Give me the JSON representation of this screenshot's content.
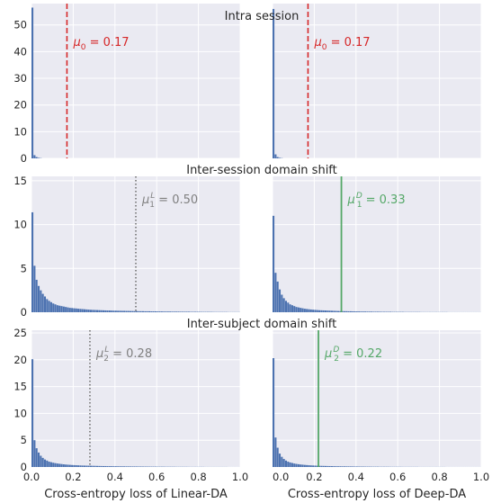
{
  "colors": {
    "panel_bg": "#eaeaf2",
    "grid": "#ffffff",
    "bar": "#4c72b0",
    "red": "#d62728",
    "gray": "#808080",
    "green": "#55a868"
  },
  "chart_data": {
    "type": "bar",
    "xlabels": [
      "Cross-entropy loss of Linear-DA",
      "Cross-entropy loss of Deep-DA"
    ],
    "x_ticks": [
      0.0,
      0.2,
      0.4,
      0.6,
      0.8,
      1.0
    ],
    "x_tick_labels": [
      "0.0",
      "0.2",
      "0.4",
      "0.6",
      "0.8",
      "1.0"
    ],
    "xlim": [
      0,
      1
    ],
    "bin_width": 0.01,
    "grid": true,
    "rows": [
      {
        "title": "Intra session",
        "ylim": [
          0,
          58
        ],
        "y_ticks": [
          0,
          10,
          20,
          30,
          40,
          50
        ],
        "y_tick_labels": [
          "0",
          "10",
          "20",
          "30",
          "40",
          "50"
        ],
        "panels": [
          {
            "name": "intra-linear",
            "values": [
              56.5,
              1.2,
              0.5,
              0.2,
              0.1
            ],
            "line": {
              "x": 0.17,
              "style": "dashed",
              "color": "#d62728"
            },
            "annotation": {
              "prefix": "μ",
              "sub": "0",
              "sup": "",
              "text": " = 0.17",
              "color": "#d62728"
            }
          },
          {
            "name": "intra-deep",
            "values": [
              56.0,
              1.5,
              0.5,
              0.2,
              0.1
            ],
            "line": {
              "x": 0.17,
              "style": "dashed",
              "color": "#d62728"
            },
            "annotation": {
              "prefix": "μ",
              "sub": "0",
              "sup": "",
              "text": " = 0.17",
              "color": "#d62728"
            }
          }
        ]
      },
      {
        "title": "Inter-session domain shift",
        "ylim": [
          0,
          15.5
        ],
        "y_ticks": [
          0,
          5,
          10,
          15
        ],
        "y_tick_labels": [
          "0",
          "5",
          "10",
          "15"
        ],
        "panels": [
          {
            "name": "session-linear",
            "values": [
              11.4,
              5.3,
              3.7,
              3.0,
              2.5,
              2.1,
              1.8,
              1.5,
              1.3,
              1.15,
              1.0,
              0.9,
              0.8,
              0.75,
              0.7,
              0.65,
              0.6,
              0.55,
              0.5,
              0.48,
              0.45,
              0.43,
              0.4,
              0.38,
              0.36,
              0.34,
              0.32,
              0.3,
              0.28,
              0.27,
              0.26,
              0.25,
              0.24,
              0.23,
              0.22,
              0.21,
              0.2,
              0.2,
              0.19,
              0.18,
              0.18,
              0.17,
              0.17,
              0.16,
              0.16,
              0.15,
              0.15,
              0.14,
              0.14,
              0.13,
              0.13,
              0.12,
              0.12,
              0.12,
              0.11,
              0.11,
              0.11,
              0.1,
              0.1,
              0.1,
              0.09,
              0.09,
              0.09,
              0.08,
              0.08,
              0.08,
              0.08,
              0.07,
              0.07,
              0.07,
              0.07,
              0.06,
              0.06,
              0.06,
              0.06,
              0.06,
              0.05,
              0.05,
              0.05,
              0.05,
              0.05,
              0.04,
              0.04,
              0.04,
              0.04,
              0.04,
              0.04,
              0.03,
              0.03,
              0.03,
              0.03,
              0.03,
              0.03,
              0.03,
              0.02,
              0.02,
              0.02,
              0.02,
              0.02,
              0.02
            ],
            "line": {
              "x": 0.5,
              "style": "dotted",
              "color": "#808080"
            },
            "annotation": {
              "prefix": "μ",
              "sub": "1",
              "sup": "L",
              "text": " = 0.50",
              "color": "#808080"
            }
          },
          {
            "name": "session-deep",
            "values": [
              11.0,
              4.5,
              3.5,
              2.6,
              2.0,
              1.6,
              1.3,
              1.1,
              0.9,
              0.8,
              0.7,
              0.6,
              0.55,
              0.5,
              0.45,
              0.4,
              0.37,
              0.34,
              0.31,
              0.29,
              0.27,
              0.25,
              0.23,
              0.22,
              0.21,
              0.2,
              0.19,
              0.18,
              0.17,
              0.16,
              0.15,
              0.14,
              0.13,
              0.13,
              0.12,
              0.12,
              0.11,
              0.11,
              0.1,
              0.1,
              0.09,
              0.09,
              0.08,
              0.08,
              0.08,
              0.07,
              0.07,
              0.07,
              0.06,
              0.06,
              0.06,
              0.06,
              0.05,
              0.05,
              0.05,
              0.05,
              0.05,
              0.04,
              0.04,
              0.04,
              0.04,
              0.04,
              0.04,
              0.03,
              0.03,
              0.03,
              0.03,
              0.03,
              0.03,
              0.03,
              0.03,
              0.02,
              0.02,
              0.02,
              0.02,
              0.02,
              0.02,
              0.02,
              0.02,
              0.02,
              0.02,
              0.02,
              0.02,
              0.02,
              0.01,
              0.01,
              0.01,
              0.01,
              0.01,
              0.01,
              0.01,
              0.01,
              0.01,
              0.01,
              0.01,
              0.01,
              0.01,
              0.01,
              0.01,
              0.01
            ],
            "line": {
              "x": 0.33,
              "style": "solid",
              "color": "#55a868"
            },
            "annotation": {
              "prefix": "μ",
              "sub": "1",
              "sup": "D",
              "text": " = 0.33",
              "color": "#55a868"
            }
          }
        ]
      },
      {
        "title": "Inter-subject domain shift",
        "ylim": [
          0,
          25.5
        ],
        "y_ticks": [
          0,
          5,
          10,
          15,
          20,
          25
        ],
        "y_tick_labels": [
          "0",
          "5",
          "10",
          "15",
          "20",
          "25"
        ],
        "panels": [
          {
            "name": "subject-linear",
            "values": [
              20.1,
              5.0,
              3.5,
              2.7,
              2.1,
              1.7,
              1.4,
              1.2,
              1.0,
              0.9,
              0.8,
              0.72,
              0.65,
              0.6,
              0.55,
              0.5,
              0.46,
              0.43,
              0.4,
              0.37,
              0.35,
              0.33,
              0.31,
              0.29,
              0.27,
              0.26,
              0.25,
              0.24,
              0.23,
              0.22,
              0.21,
              0.2,
              0.19,
              0.18,
              0.17,
              0.17,
              0.16,
              0.15,
              0.15,
              0.14,
              0.14,
              0.13,
              0.13,
              0.12,
              0.12,
              0.11,
              0.11,
              0.1,
              0.1,
              0.1,
              0.09,
              0.09,
              0.09,
              0.08,
              0.08,
              0.08,
              0.07,
              0.07,
              0.07,
              0.07,
              0.06,
              0.06,
              0.06,
              0.06,
              0.05,
              0.05,
              0.05,
              0.05,
              0.05,
              0.04,
              0.04,
              0.04,
              0.04,
              0.04,
              0.04,
              0.03,
              0.03,
              0.03,
              0.03,
              0.03,
              0.03,
              0.03,
              0.03,
              0.02,
              0.02,
              0.02,
              0.02,
              0.02,
              0.02,
              0.02,
              0.02,
              0.02,
              0.02,
              0.02,
              0.01,
              0.01,
              0.01,
              0.01,
              0.01,
              0.01
            ],
            "line": {
              "x": 0.28,
              "style": "dotted",
              "color": "#808080"
            },
            "annotation": {
              "prefix": "μ",
              "sub": "2",
              "sup": "L",
              "text": " = 0.28",
              "color": "#808080"
            }
          },
          {
            "name": "subject-deep",
            "values": [
              20.3,
              5.5,
              3.6,
              2.5,
              1.9,
              1.5,
              1.2,
              1.0,
              0.85,
              0.75,
              0.65,
              0.58,
              0.52,
              0.47,
              0.43,
              0.39,
              0.36,
              0.33,
              0.3,
              0.28,
              0.26,
              0.24,
              0.22,
              0.21,
              0.2,
              0.19,
              0.18,
              0.17,
              0.16,
              0.15,
              0.14,
              0.13,
              0.13,
              0.12,
              0.12,
              0.11,
              0.11,
              0.1,
              0.1,
              0.09,
              0.09,
              0.08,
              0.08,
              0.08,
              0.07,
              0.07,
              0.07,
              0.06,
              0.06,
              0.06,
              0.06,
              0.05,
              0.05,
              0.05,
              0.05,
              0.05,
              0.04,
              0.04,
              0.04,
              0.04,
              0.04,
              0.04,
              0.03,
              0.03,
              0.03,
              0.03,
              0.03,
              0.03,
              0.03,
              0.03,
              0.02,
              0.02,
              0.02,
              0.02,
              0.02,
              0.02,
              0.02,
              0.02,
              0.02,
              0.02,
              0.02,
              0.02,
              0.02,
              0.01,
              0.01,
              0.01,
              0.01,
              0.01,
              0.01,
              0.01,
              0.01,
              0.01,
              0.01,
              0.01,
              0.01,
              0.01,
              0.01,
              0.01,
              0.01,
              0.01
            ],
            "line": {
              "x": 0.22,
              "style": "solid",
              "color": "#55a868"
            },
            "annotation": {
              "prefix": "μ",
              "sub": "2",
              "sup": "D",
              "text": " = 0.22",
              "color": "#55a868"
            }
          }
        ]
      }
    ]
  }
}
